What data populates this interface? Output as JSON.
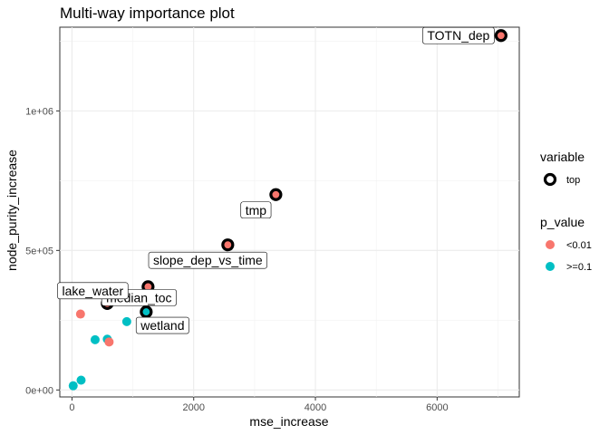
{
  "chart_data": {
    "type": "scatter",
    "title": "Multi-way importance plot",
    "xlabel": "mse_increase",
    "ylabel": "node_purity_increase",
    "xlim": [
      -200,
      7350
    ],
    "ylim": [
      -25000,
      1300000
    ],
    "x_ticks": [
      0,
      2000,
      4000,
      6000
    ],
    "x_tick_labels": [
      "0",
      "2000",
      "4000",
      "6000"
    ],
    "y_ticks": [
      0,
      500000,
      1000000
    ],
    "y_tick_labels": [
      "0e+00",
      "5e+05",
      "1e+06"
    ],
    "grid": true,
    "colors": {
      "lt_0_01": "#f8766d",
      "ge_0_1": "#00bfc4",
      "top_ring": "#000000"
    },
    "legends": [
      {
        "title": "variable",
        "items": [
          {
            "label": "top",
            "kind": "ring"
          }
        ]
      },
      {
        "title": "p_value",
        "items": [
          {
            "label": "<0.01",
            "kind": "fill",
            "color": "#f8766d"
          },
          {
            "label": ">=0.1",
            "kind": "fill",
            "color": "#00bfc4"
          }
        ]
      }
    ],
    "points": [
      {
        "label": "TOTN_dep",
        "x": 7050,
        "y": 1270000,
        "p_value": "<0.01",
        "top": true
      },
      {
        "label": "tmp",
        "x": 3350,
        "y": 700000,
        "p_value": "<0.01",
        "top": true
      },
      {
        "label": "slope_dep_vs_time",
        "x": 2560,
        "y": 520000,
        "p_value": "<0.01",
        "top": true
      },
      {
        "label": "median_toc",
        "x": 1250,
        "y": 370000,
        "p_value": "<0.01",
        "top": true
      },
      {
        "label": "lake_water",
        "x": 580,
        "y": 310000,
        "p_value": "<0.01",
        "top": true
      },
      {
        "label": "wetland",
        "x": 1220,
        "y": 280000,
        "p_value": ">=0.1",
        "top": true
      },
      {
        "label": "",
        "x": 140,
        "y": 272000,
        "p_value": "<0.01",
        "top": false
      },
      {
        "label": "",
        "x": 900,
        "y": 245000,
        "p_value": ">=0.1",
        "top": false
      },
      {
        "label": "",
        "x": 580,
        "y": 182000,
        "p_value": ">=0.1",
        "top": false
      },
      {
        "label": "",
        "x": 380,
        "y": 180000,
        "p_value": ">=0.1",
        "top": false
      },
      {
        "label": "",
        "x": 610,
        "y": 172000,
        "p_value": "<0.01",
        "top": false
      },
      {
        "label": "",
        "x": 150,
        "y": 35000,
        "p_value": ">=0.1",
        "top": false
      },
      {
        "label": "",
        "x": 20,
        "y": 15000,
        "p_value": ">=0.1",
        "top": false
      }
    ]
  }
}
